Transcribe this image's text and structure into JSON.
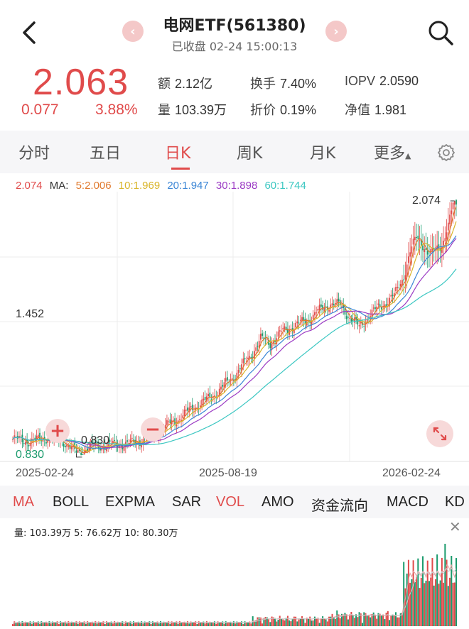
{
  "header": {
    "title": "电网ETF(561380)",
    "subtitle": "已收盘 02-24 15:00:13"
  },
  "quote": {
    "price": "2.063",
    "change": "0.077",
    "change_pct": "3.88%",
    "stats": [
      {
        "label": "额",
        "value": "2.12亿"
      },
      {
        "label": "换手",
        "value": "7.40%"
      },
      {
        "label": "IOPV",
        "value": "2.0590"
      },
      {
        "label": "量",
        "value": "103.39万"
      },
      {
        "label": "折价",
        "value": "0.19%"
      },
      {
        "label": "净值",
        "value": "1.981"
      }
    ]
  },
  "tabs": [
    "分时",
    "五日",
    "日K",
    "周K",
    "月K",
    "更多"
  ],
  "active_tab": "日K",
  "ma_legend": {
    "price": "2.074",
    "ma_label": "MA:",
    "ma5": "5:2.006",
    "ma10": "10:1.969",
    "ma20": "20:1.947",
    "ma30": "30:1.898",
    "ma60": "60:1.744"
  },
  "colors": {
    "up": "#e04b4b",
    "down": "#1a9a6c",
    "ma5": "#e07a2e",
    "ma10": "#d9b52a",
    "ma20": "#3b86d6",
    "ma30": "#9b3bc4",
    "ma60": "#3cc7c2"
  },
  "chart_data": {
    "type": "candlestick",
    "y_max_label": "2.074",
    "y_mid_label": "1.452",
    "y_min_label": "0.830",
    "high_annotation": "2.074",
    "low_annotation": "0.830",
    "x_labels": [
      "2025-02-24",
      "2025-08-19",
      "2026-02-24"
    ],
    "ylim": [
      0.83,
      2.074
    ],
    "price_path": [
      [
        0,
        0.87
      ],
      [
        12,
        0.86
      ],
      [
        22,
        0.88
      ],
      [
        32,
        0.86
      ],
      [
        40,
        0.8
      ],
      [
        48,
        0.83
      ],
      [
        60,
        0.84
      ],
      [
        75,
        0.85
      ],
      [
        85,
        0.88
      ],
      [
        95,
        0.93
      ],
      [
        105,
        0.98
      ],
      [
        115,
        1.04
      ],
      [
        122,
        1.07
      ],
      [
        130,
        1.12
      ],
      [
        140,
        1.2
      ],
      [
        150,
        1.3
      ],
      [
        156,
        1.38
      ],
      [
        162,
        1.36
      ],
      [
        170,
        1.42
      ],
      [
        178,
        1.45
      ],
      [
        186,
        1.48
      ],
      [
        192,
        1.52
      ],
      [
        200,
        1.56
      ],
      [
        206,
        1.55
      ],
      [
        212,
        1.49
      ],
      [
        218,
        1.44
      ],
      [
        224,
        1.5
      ],
      [
        232,
        1.55
      ],
      [
        240,
        1.6
      ],
      [
        246,
        1.7
      ],
      [
        250,
        1.82
      ],
      [
        254,
        1.9
      ],
      [
        258,
        1.86
      ],
      [
        262,
        1.8
      ],
      [
        266,
        1.84
      ],
      [
        270,
        1.86
      ],
      [
        274,
        1.95
      ],
      [
        277,
        2.063
      ]
    ],
    "ma_last": {
      "ma5": 2.006,
      "ma10": 1.969,
      "ma20": 1.947,
      "ma30": 1.898,
      "ma60": 1.744
    },
    "markers": [
      "+",
      "−"
    ]
  },
  "indicators": [
    "MA",
    "BOLL",
    "EXPMA",
    "SAR",
    "VOL",
    "AMO",
    "资金流向",
    "MACD",
    "KD"
  ],
  "active_indicators": [
    "MA",
    "VOL"
  ],
  "vol_legend": "量: 103.39万  5: 76.62万  10: 80.30万",
  "vol_data": {
    "last": 103.39,
    "ma5": 76.62,
    "ma10": 80.3
  }
}
